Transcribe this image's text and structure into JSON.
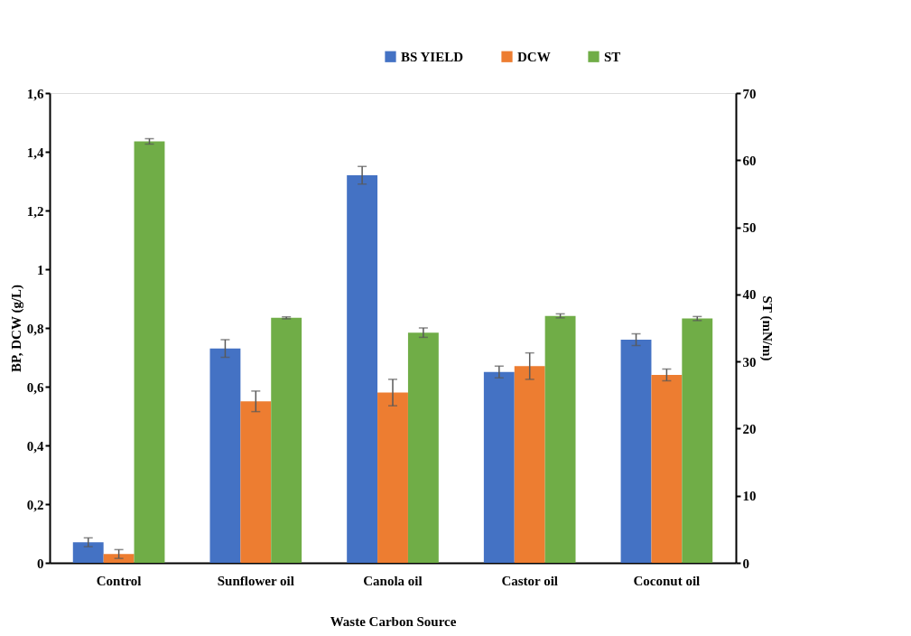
{
  "chart_data": {
    "type": "bar",
    "xlabel": "Waste Carbon Source",
    "ylabel": "BP, DCW (g/L)",
    "y2label": "ST (mN/m)",
    "categories": [
      "Control",
      "Sunflower oil",
      "Canola oil",
      "Castor oil",
      "Coconut oil"
    ],
    "series": [
      {
        "name": "BS YIELD",
        "color": "#4472c4",
        "values": [
          0.07,
          0.73,
          1.32,
          0.65,
          0.76
        ],
        "errors": [
          0.015,
          0.03,
          0.03,
          0.02,
          0.02
        ]
      },
      {
        "name": "DCW",
        "color": "#ed7d31",
        "values": [
          0.03,
          0.55,
          0.58,
          0.67,
          0.64
        ],
        "errors": [
          0.015,
          0.035,
          0.045,
          0.045,
          0.02
        ]
      },
      {
        "name": "ST",
        "color": "#70ad47",
        "axis": "y2",
        "values": [
          62.8,
          36.5,
          34.3,
          36.8,
          36.4
        ],
        "errors": [
          0.4,
          0.15,
          0.7,
          0.3,
          0.3
        ]
      }
    ],
    "ylim": [
      0,
      1.6
    ],
    "yticks": [
      0,
      {
        "value": 0.2,
        "label": "0,2"
      },
      {
        "value": 0.4,
        "label": "0,4"
      },
      {
        "value": 0.6,
        "label": "0,6"
      },
      {
        "value": 0.8,
        "label": "0,8"
      },
      1,
      {
        "value": 1.2,
        "label": "1,2"
      },
      {
        "value": 1.4,
        "label": "1,4"
      },
      {
        "value": 1.6,
        "label": "1,6"
      }
    ],
    "y2lim": [
      0,
      70
    ],
    "y2ticks": [
      0,
      10,
      20,
      30,
      40,
      50,
      60,
      70
    ],
    "grid": false,
    "legend": "top right"
  }
}
